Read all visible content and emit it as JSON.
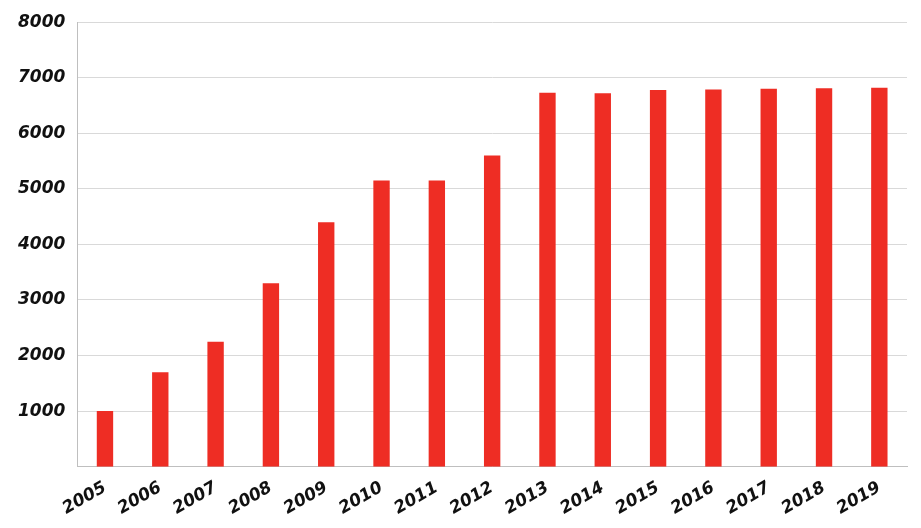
{
  "chart_data": {
    "type": "bar",
    "categories": [
      "2005",
      "2006",
      "2007",
      "2008",
      "2009",
      "2010",
      "2011",
      "2012",
      "2013",
      "2014",
      "2015",
      "2016",
      "2017",
      "2018",
      "2019"
    ],
    "values": [
      1000,
      1700,
      2250,
      3300,
      4400,
      5150,
      5150,
      5600,
      6730,
      6720,
      6780,
      6790,
      6800,
      6810,
      6820
    ],
    "color": "#ee2d24",
    "ylim": [
      0,
      8000
    ],
    "yticks": [
      1000,
      2000,
      3000,
      4000,
      5000,
      6000,
      7000,
      8000
    ],
    "grid": true
  }
}
